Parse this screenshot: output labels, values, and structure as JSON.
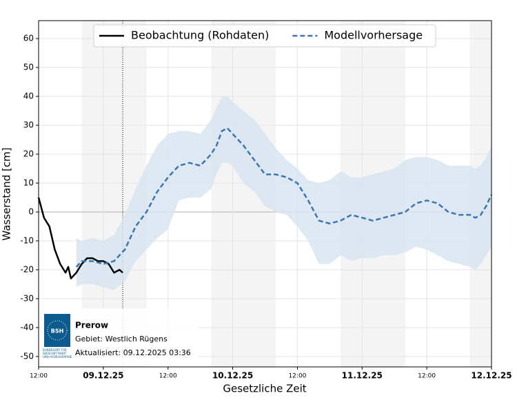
{
  "chart_data": {
    "type": "line",
    "xlabel": "Gesetzliche Zeit",
    "ylabel": "Wasserstand [cm]",
    "xlim": [
      0,
      84
    ],
    "ylim": [
      -53.6,
      66.2
    ],
    "xticks": [
      {
        "value": 0,
        "label": "12:00"
      },
      {
        "value": 12,
        "label": "09.12.25"
      },
      {
        "value": 24,
        "label": "12:00"
      },
      {
        "value": 36,
        "label": "10.12.25"
      },
      {
        "value": 48,
        "label": "12:00"
      },
      {
        "value": 60,
        "label": "11.12.25"
      },
      {
        "value": 72,
        "label": "12:00"
      },
      {
        "value": 84,
        "label": "12.12.25"
      }
    ],
    "yticks": [
      -50,
      -40,
      -30,
      -20,
      -10,
      0,
      10,
      20,
      30,
      40,
      50,
      60
    ],
    "grid": true,
    "legend": "top",
    "shaded_periods": [
      [
        8,
        20
      ],
      [
        32,
        44
      ],
      [
        56,
        68
      ],
      [
        80,
        84
      ]
    ],
    "now_line": 15.6,
    "series": [
      {
        "name": "Beobachtung (Rohdaten)",
        "color": "#000000",
        "dashed": false,
        "x": [
          0,
          1,
          2,
          3,
          4,
          5,
          5.5,
          6,
          7,
          8,
          9,
          10,
          11,
          12,
          13,
          14,
          15,
          15.6
        ],
        "values": [
          5,
          -2,
          -5,
          -13,
          -18,
          -21,
          -19,
          -23,
          -21,
          -18,
          -16,
          -16,
          -17,
          -17,
          -18,
          -21,
          -20,
          -21
        ]
      },
      {
        "name": "Modellvorhersage",
        "color": "#3a75b0",
        "dashed": true,
        "band_color": "#d6e4f1",
        "x": [
          7,
          8,
          10,
          12,
          14,
          16,
          18,
          20,
          22,
          24,
          26,
          28,
          30,
          32,
          33,
          34,
          35,
          36,
          38,
          40,
          42,
          44,
          46,
          48,
          50,
          52,
          54,
          56,
          58,
          60,
          62,
          64,
          66,
          68,
          70,
          72,
          74,
          76,
          78,
          80,
          81,
          82,
          83,
          84
        ],
        "values": [
          -19,
          -17,
          -17,
          -18,
          -17,
          -13,
          -5,
          0,
          7,
          12,
          16,
          17,
          16,
          20,
          23,
          28,
          29,
          27,
          23,
          18,
          13,
          13,
          12,
          10,
          4,
          -3,
          -4,
          -3,
          -1,
          -2,
          -3,
          -2,
          -1,
          0,
          3,
          4,
          3,
          0,
          -1,
          -1,
          -2,
          -1,
          2,
          6
        ],
        "upper": [
          -9,
          -10,
          -9,
          -10,
          -8,
          -1,
          8,
          16,
          23,
          27,
          28,
          28,
          27,
          32,
          36,
          40,
          40,
          38,
          35,
          32,
          27,
          22,
          18,
          15,
          11,
          10,
          11,
          14,
          12,
          12,
          13,
          14,
          15,
          18,
          19,
          19,
          18,
          16,
          16,
          16,
          15,
          16,
          19,
          23
        ],
        "lower": [
          -26,
          -25,
          -25,
          -26,
          -27,
          -24,
          -17,
          -13,
          -9,
          -6,
          4,
          5,
          5,
          8,
          13,
          17,
          17,
          16,
          10,
          7,
          2,
          0,
          -1,
          -5,
          -10,
          -18,
          -18,
          -15,
          -17,
          -16,
          -16,
          -15,
          -15,
          -14,
          -12,
          -13,
          -15,
          -17,
          -18,
          -19,
          -20,
          -18,
          -15,
          -12
        ]
      }
    ],
    "info": {
      "logo": "BSH",
      "logo_caption": "BUNDESAMT FÜR SEESCHIFFFAHRT UND HYDROGRAPHIE",
      "station": "Prerow",
      "area": "Gebiet: Westlich Rügens",
      "updated": "Aktualisiert: 09.12.2025 03:36"
    }
  }
}
